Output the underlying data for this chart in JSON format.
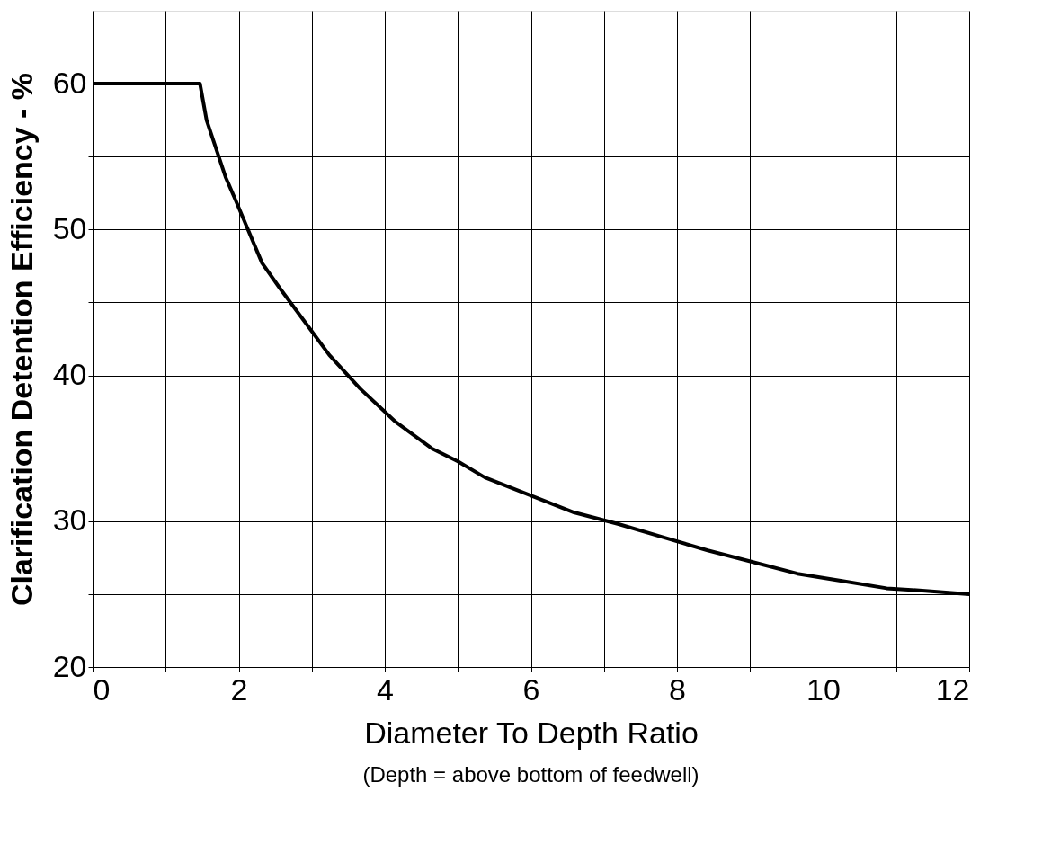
{
  "chart_data": {
    "type": "line",
    "xlabel": "Diameter To Depth Ratio",
    "ylabel": "Clarification Detention Efficiency - %",
    "annotations": [
      "(Depth = above bottom of feedwell)"
    ],
    "x": [
      0,
      1.47,
      1.56,
      1.82,
      1.95,
      2.32,
      2.56,
      2.93,
      3.24,
      3.66,
      4.15,
      4.64,
      5.0,
      5.37,
      5.98,
      6.59,
      7.2,
      7.81,
      8.42,
      9.04,
      9.65,
      10.26,
      10.87,
      11.48,
      12
    ],
    "series": [
      {
        "color": "#000000",
        "values": [
          60,
          60,
          57.5,
          53.6,
          52.1,
          47.7,
          46.0,
          43.5,
          41.4,
          39.1,
          36.8,
          35.0,
          34.1,
          33.0,
          31.8,
          30.6,
          29.8,
          28.9,
          28.0,
          27.2,
          26.4,
          25.9,
          25.4,
          25.2,
          25.0
        ]
      }
    ],
    "xlim": [
      0,
      12
    ],
    "xticks": [
      0,
      {
        "value": 1,
        "label": null
      },
      2,
      {
        "value": 3,
        "label": null
      },
      4,
      {
        "value": 5,
        "label": null
      },
      6,
      {
        "value": 7,
        "label": null
      },
      8,
      {
        "value": 9,
        "label": null
      },
      10,
      {
        "value": 11,
        "label": null
      },
      12
    ],
    "ylim": [
      20,
      65
    ],
    "yticks": [
      20,
      {
        "value": 25,
        "label": null
      },
      30,
      {
        "value": 35,
        "label": null
      },
      40,
      {
        "value": 45,
        "label": null
      },
      50,
      {
        "value": 55,
        "label": null
      },
      60
    ],
    "grid": true,
    "legend": false,
    "marker": "none",
    "line_style": "solid"
  }
}
